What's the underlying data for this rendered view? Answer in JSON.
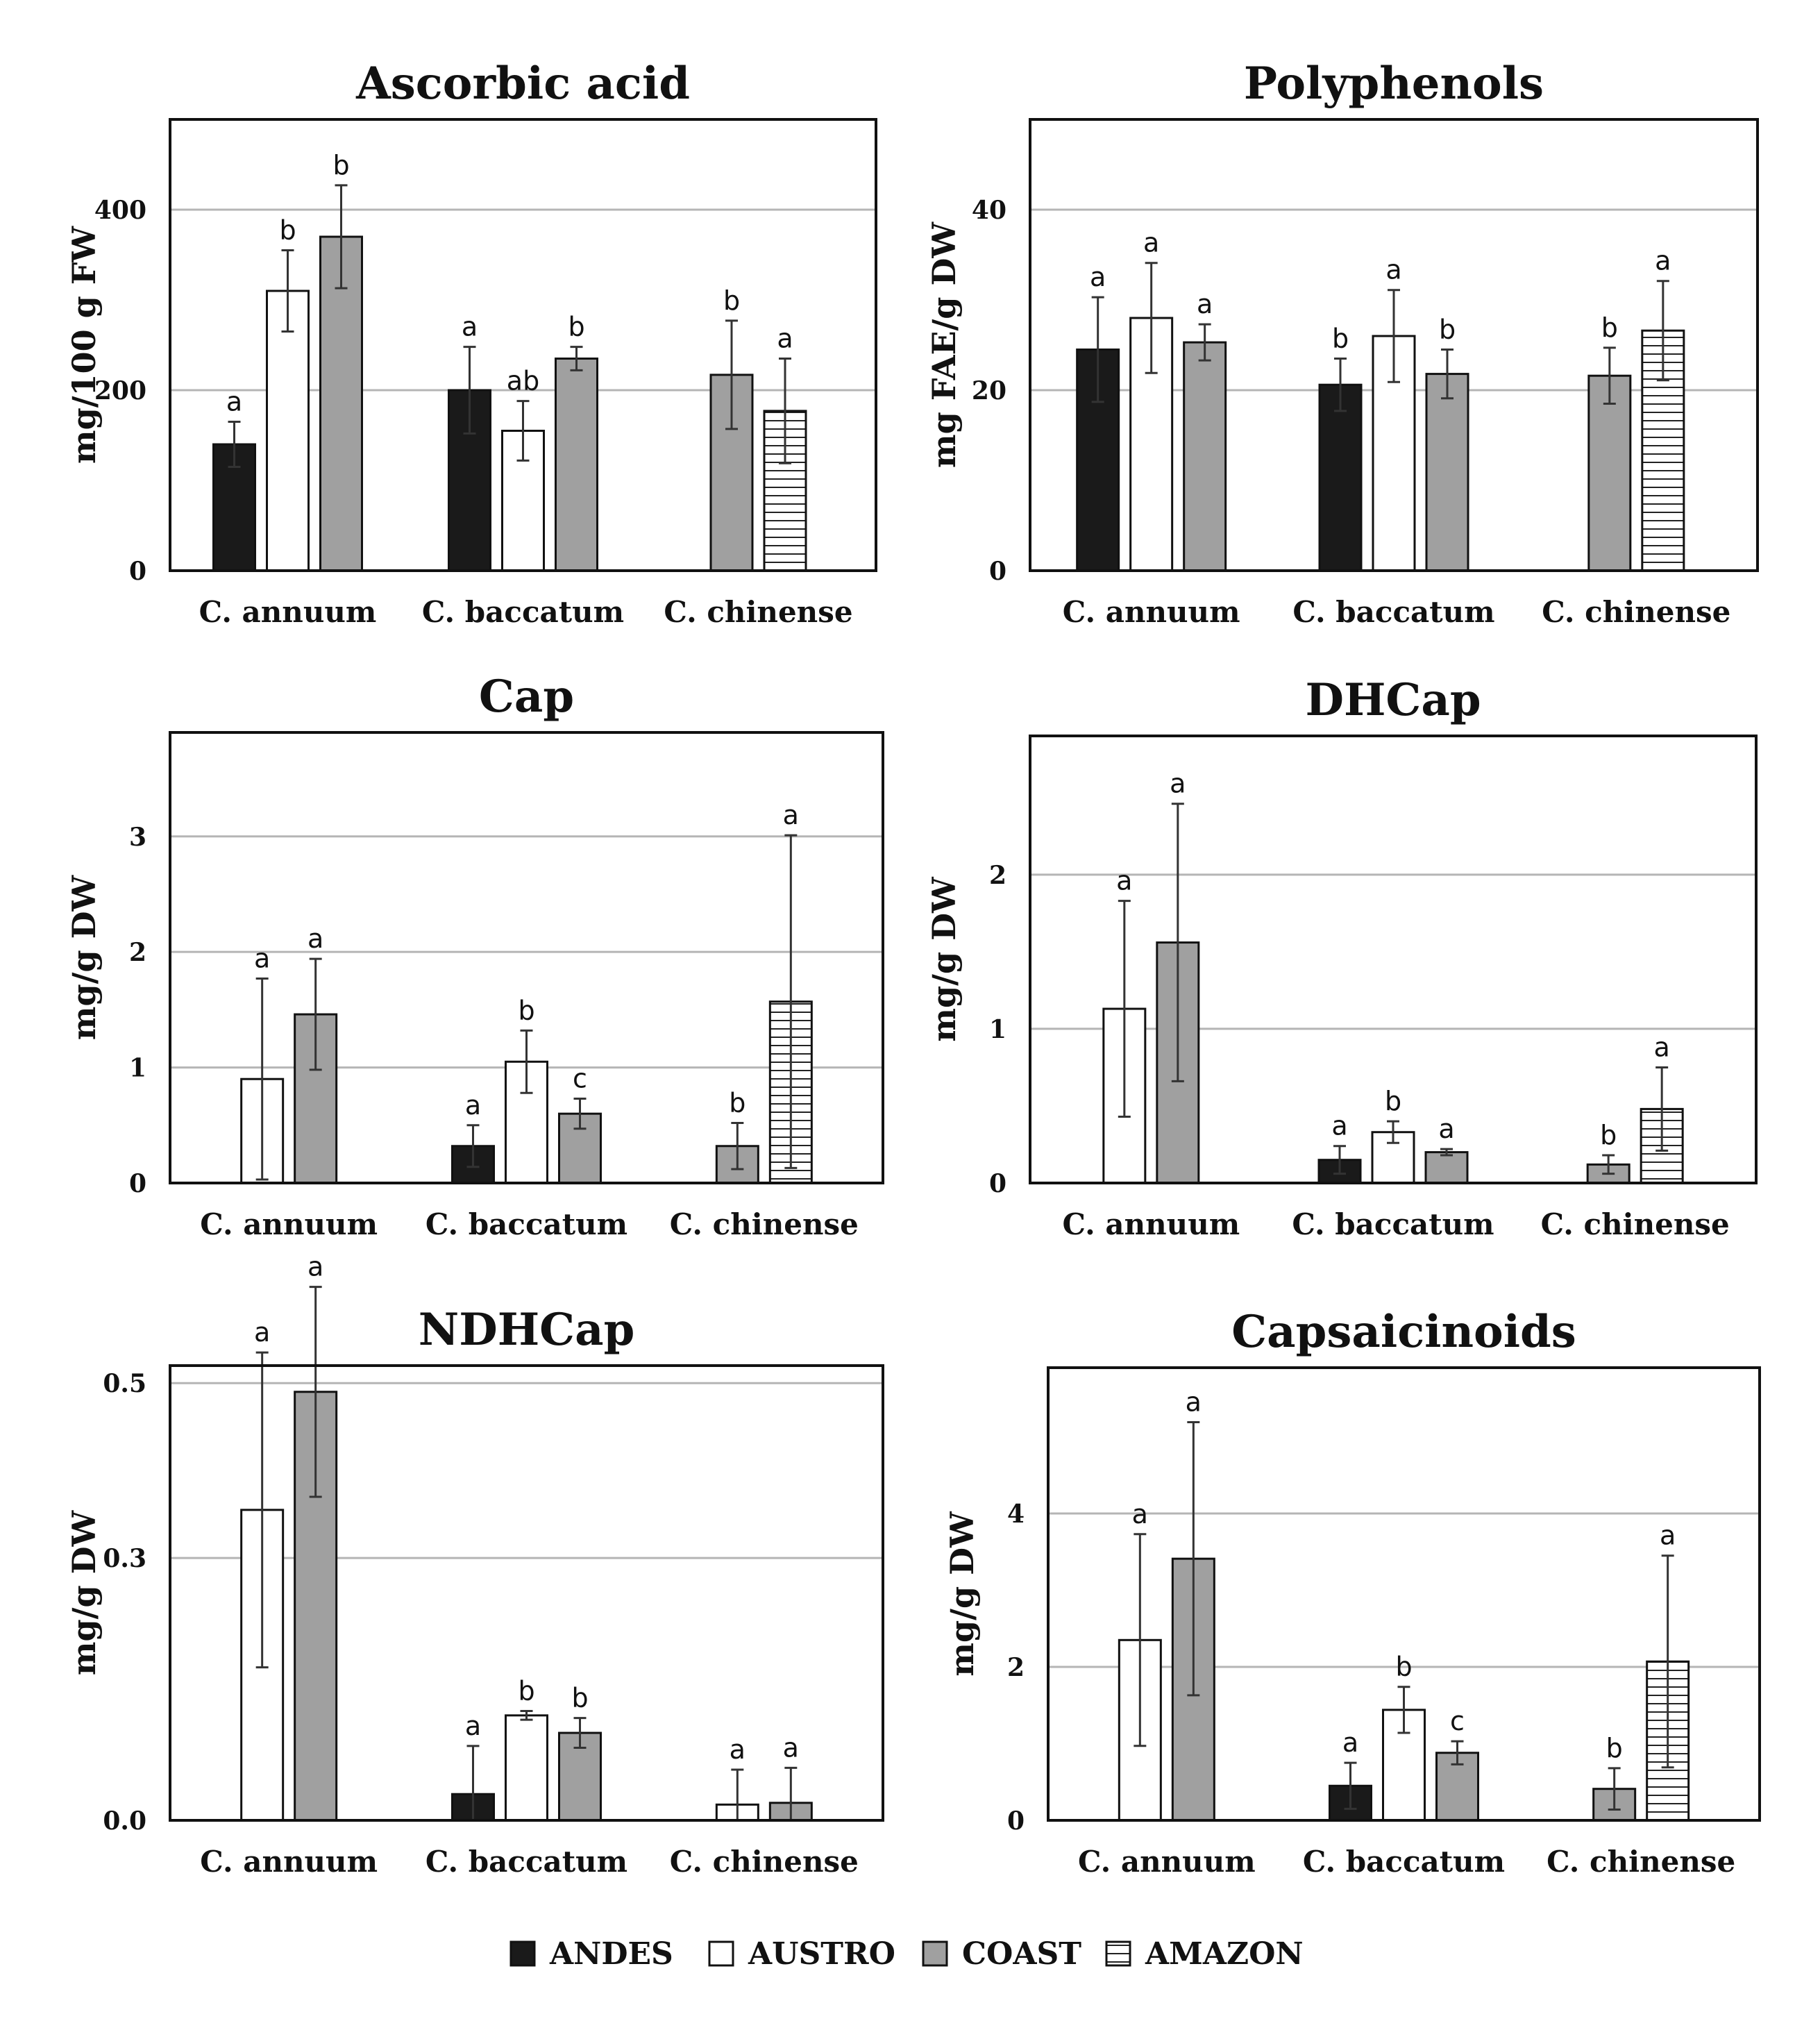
{
  "legend": [
    {
      "name": "ANDES",
      "fill": "#1a1a1a",
      "pattern": "solid"
    },
    {
      "name": "AUSTRO",
      "fill": "#ffffff",
      "pattern": "solid"
    },
    {
      "name": "COAST",
      "fill": "#a0a0a0",
      "pattern": "solid"
    },
    {
      "name": "AMAZON",
      "fill": "#ffffff",
      "pattern": "hlines"
    }
  ],
  "chart_data": [
    {
      "type": "bar",
      "title": "Ascorbic acid",
      "ylabel": "mg/100 g FW",
      "ylim": [
        0,
        500
      ],
      "yticks": [
        0,
        200,
        400
      ],
      "ytick_labels": [
        "0",
        "200",
        "400"
      ],
      "categories": [
        "C. annuum",
        "C. baccatum",
        "C. chinense"
      ],
      "series": [
        {
          "name": "ANDES",
          "values": [
            140,
            200,
            null
          ],
          "errors": [
            25,
            48,
            null
          ],
          "labels": [
            "a",
            "a",
            null
          ]
        },
        {
          "name": "AUSTRO",
          "values": [
            310,
            155,
            null
          ],
          "errors": [
            45,
            33,
            null
          ],
          "labels": [
            "b",
            "ab",
            null
          ]
        },
        {
          "name": "COAST",
          "values": [
            370,
            235,
            217
          ],
          "errors": [
            57,
            13,
            60
          ],
          "labels": [
            "b",
            "b",
            "b"
          ]
        },
        {
          "name": "AMAZON",
          "values": [
            null,
            null,
            177
          ],
          "errors": [
            null,
            null,
            58
          ],
          "labels": [
            null,
            null,
            "a"
          ]
        }
      ]
    },
    {
      "type": "bar",
      "title": "Polyphenols",
      "ylabel": "mg FAE/g DW",
      "ylim": [
        0,
        50
      ],
      "yticks": [
        0,
        20,
        40
      ],
      "ytick_labels": [
        "0",
        "20",
        "40"
      ],
      "categories": [
        "C. annuum",
        "C. baccatum",
        "C. chinense"
      ],
      "series": [
        {
          "name": "ANDES",
          "values": [
            24.5,
            20.6,
            null
          ],
          "errors": [
            5.8,
            2.9,
            null
          ],
          "labels": [
            "a",
            "b",
            null
          ]
        },
        {
          "name": "AUSTRO",
          "values": [
            28,
            26,
            null
          ],
          "errors": [
            6.1,
            5.1,
            null
          ],
          "labels": [
            "a",
            "a",
            null
          ]
        },
        {
          "name": "COAST",
          "values": [
            25.3,
            21.8,
            21.6
          ],
          "errors": [
            2,
            2.7,
            3.1
          ],
          "labels": [
            "a",
            "b",
            "b"
          ]
        },
        {
          "name": "AMAZON",
          "values": [
            null,
            null,
            26.6
          ],
          "errors": [
            null,
            null,
            5.5
          ],
          "labels": [
            null,
            null,
            "a"
          ]
        }
      ]
    },
    {
      "type": "bar",
      "title": "Cap",
      "ylabel": "mg/g DW",
      "ylim": [
        0,
        3.9
      ],
      "yticks": [
        0,
        1,
        2,
        3
      ],
      "ytick_labels": [
        "0",
        "1",
        "2",
        "3"
      ],
      "categories": [
        "C. annuum",
        "C. baccatum",
        "C. chinense"
      ],
      "series": [
        {
          "name": "ANDES",
          "values": [
            null,
            0.32,
            null
          ],
          "errors": [
            null,
            0.18,
            null
          ],
          "labels": [
            null,
            "a",
            null
          ]
        },
        {
          "name": "AUSTRO",
          "values": [
            0.9,
            1.05,
            null
          ],
          "errors": [
            0.87,
            0.27,
            null
          ],
          "labels": [
            "a",
            "b",
            null
          ]
        },
        {
          "name": "COAST",
          "values": [
            1.46,
            0.6,
            0.32
          ],
          "errors": [
            0.48,
            0.13,
            0.2
          ],
          "labels": [
            "a",
            "c",
            "b"
          ]
        },
        {
          "name": "AMAZON",
          "values": [
            null,
            null,
            1.57
          ],
          "errors": [
            null,
            null,
            1.44
          ],
          "labels": [
            null,
            null,
            "a"
          ]
        }
      ]
    },
    {
      "type": "bar",
      "title": "DHCap",
      "ylabel": "mg/g DW",
      "ylim": [
        0,
        2.9
      ],
      "yticks": [
        0,
        1,
        2
      ],
      "ytick_labels": [
        "0",
        "1",
        "2"
      ],
      "categories": [
        "C. annuum",
        "C. baccatum",
        "C. chinense"
      ],
      "series": [
        {
          "name": "ANDES",
          "values": [
            null,
            0.15,
            null
          ],
          "errors": [
            null,
            0.09,
            null
          ],
          "labels": [
            null,
            "a",
            null
          ]
        },
        {
          "name": "AUSTRO",
          "values": [
            1.13,
            0.33,
            null
          ],
          "errors": [
            0.7,
            0.07,
            null
          ],
          "labels": [
            "a",
            "b",
            null
          ]
        },
        {
          "name": "COAST",
          "values": [
            1.56,
            0.2,
            0.12
          ],
          "errors": [
            0.9,
            0.02,
            0.06
          ],
          "labels": [
            "a",
            "a",
            "b"
          ]
        },
        {
          "name": "AMAZON",
          "values": [
            null,
            null,
            0.48
          ],
          "errors": [
            null,
            null,
            0.27
          ],
          "labels": [
            null,
            null,
            "a"
          ]
        }
      ]
    },
    {
      "type": "bar",
      "title": "NDHCap",
      "ylabel": "mg/g DW",
      "ylim": [
        0,
        0.52
      ],
      "yticks": [
        0,
        0.3,
        0.5
      ],
      "ytick_labels": [
        "0.0",
        "0.3",
        "0.5"
      ],
      "categories": [
        "C. annuum",
        "C. baccatum",
        "C. chinense"
      ],
      "series": [
        {
          "name": "ANDES",
          "values": [
            null,
            0.03,
            null
          ],
          "errors": [
            null,
            0.055,
            null
          ],
          "labels": [
            null,
            "a",
            null
          ]
        },
        {
          "name": "AUSTRO",
          "values": [
            0.355,
            0.12,
            0.018
          ],
          "errors": [
            0.18,
            0.005,
            0.04
          ],
          "labels": [
            "a",
            "b",
            "a"
          ]
        },
        {
          "name": "COAST",
          "values": [
            0.49,
            0.1,
            0.02
          ],
          "errors": [
            0.12,
            0.017,
            0.04
          ],
          "labels": [
            "a",
            "b",
            "a"
          ]
        },
        {
          "name": "AMAZON",
          "values": [
            null,
            null,
            null
          ],
          "errors": [
            null,
            null,
            null
          ],
          "labels": [
            null,
            null,
            null
          ]
        }
      ]
    },
    {
      "type": "bar",
      "title": "Capsaicinoids",
      "ylabel": "mg/g DW",
      "ylim": [
        0,
        5.9
      ],
      "yticks": [
        0,
        2,
        4
      ],
      "ytick_labels": [
        "0",
        "2",
        "4"
      ],
      "categories": [
        "C. annuum",
        "C. baccatum",
        "C. chinense"
      ],
      "series": [
        {
          "name": "ANDES",
          "values": [
            null,
            0.45,
            null
          ],
          "errors": [
            null,
            0.3,
            null
          ],
          "labels": [
            null,
            "a",
            null
          ]
        },
        {
          "name": "AUSTRO",
          "values": [
            2.35,
            1.44,
            null
          ],
          "errors": [
            1.38,
            0.3,
            null
          ],
          "labels": [
            "a",
            "b",
            null
          ]
        },
        {
          "name": "COAST",
          "values": [
            3.41,
            0.88,
            0.41
          ],
          "errors": [
            1.78,
            0.15,
            0.27
          ],
          "labels": [
            "a",
            "c",
            "b"
          ]
        },
        {
          "name": "AMAZON",
          "values": [
            null,
            null,
            2.07
          ],
          "errors": [
            null,
            null,
            1.38
          ],
          "labels": [
            null,
            null,
            "a"
          ]
        }
      ]
    }
  ]
}
